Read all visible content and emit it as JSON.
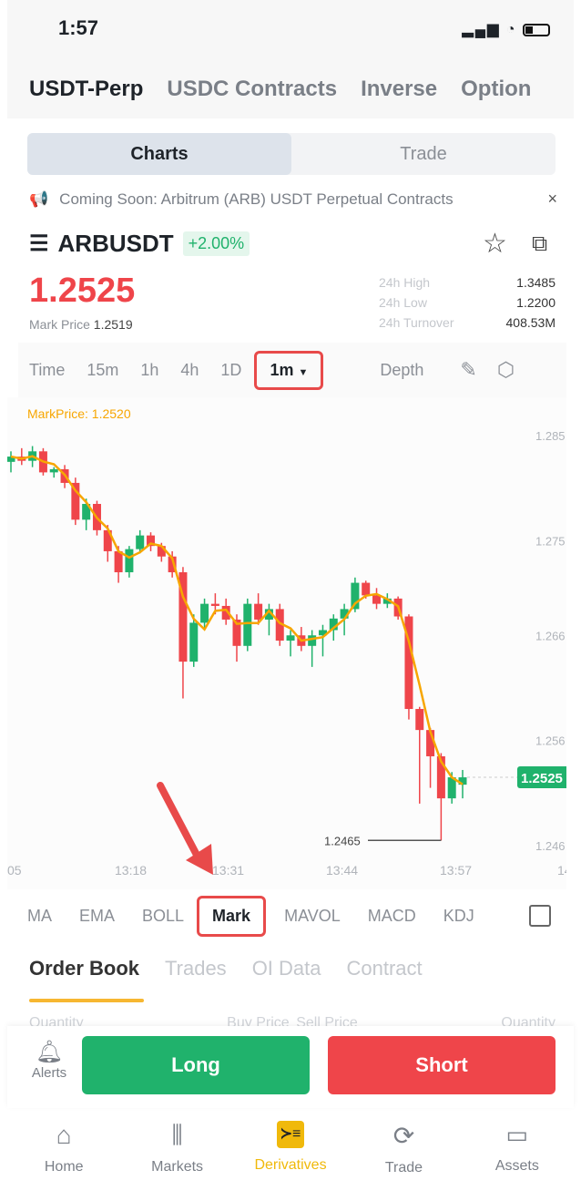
{
  "status_bar": {
    "time": "1:57",
    "icons": "signal wifi battery"
  },
  "top_tabs": [
    {
      "label": "USDT-Perp",
      "active": true
    },
    {
      "label": "USDC Contracts"
    },
    {
      "label": "Inverse"
    },
    {
      "label": "Option"
    }
  ],
  "segment": {
    "charts": "Charts",
    "trade": "Trade"
  },
  "notice": {
    "text": "Coming Soon: Arbitrum (ARB) USDT Perpetual Contracts",
    "close": "×"
  },
  "symbol": {
    "name": "ARBUSDT",
    "change": "+2.00%"
  },
  "price": {
    "last": "1.2525",
    "mark_label": "Mark Price",
    "mark_value": "1.2519"
  },
  "stats": [
    {
      "label": "24h High",
      "value": "1.3485"
    },
    {
      "label": "24h Low",
      "value": "1.2200"
    },
    {
      "label": "24h Turnover",
      "value": "408.53M"
    }
  ],
  "timeframes": {
    "items": [
      "Time",
      "15m",
      "1h",
      "4h",
      "1D"
    ],
    "selected": "1m",
    "depth": "Depth"
  },
  "chart_data": {
    "type": "candlestick",
    "mark_price_label": "MarkPrice: 1.2520",
    "y_ticks": [
      "1.285",
      "1.275",
      "1.266",
      "1.256",
      "1.246"
    ],
    "y_tick_values": [
      1.285,
      1.275,
      1.266,
      1.256,
      1.246
    ],
    "x_ticks": [
      "05",
      "13:18",
      "13:31",
      "13:44",
      "13:57",
      "14"
    ],
    "current_price": "1.2525",
    "low_marker": "1.2465",
    "colors": {
      "up": "#20b26c",
      "down": "#ef454a",
      "ma": "#f7a600"
    },
    "candles": [
      [
        1.2825,
        1.2835,
        1.2815,
        1.283
      ],
      [
        1.283,
        1.2838,
        1.2822,
        1.2826
      ],
      [
        1.2826,
        1.284,
        1.282,
        1.2835
      ],
      [
        1.2835,
        1.2838,
        1.2812,
        1.2815
      ],
      [
        1.2815,
        1.282,
        1.281,
        1.2818
      ],
      [
        1.2818,
        1.2822,
        1.28,
        1.2805
      ],
      [
        1.2805,
        1.281,
        1.2765,
        1.277
      ],
      [
        1.277,
        1.279,
        1.276,
        1.2785
      ],
      [
        1.2785,
        1.2788,
        1.2755,
        1.276
      ],
      [
        1.276,
        1.2765,
        1.273,
        1.274
      ],
      [
        1.274,
        1.2745,
        1.271,
        1.272
      ],
      [
        1.272,
        1.2745,
        1.2715,
        1.2742
      ],
      [
        1.2742,
        1.276,
        1.2738,
        1.2755
      ],
      [
        1.2755,
        1.2758,
        1.274,
        1.2745
      ],
      [
        1.2745,
        1.2748,
        1.273,
        1.2735
      ],
      [
        1.2735,
        1.274,
        1.2715,
        1.272
      ],
      [
        1.272,
        1.2725,
        1.26,
        1.2635
      ],
      [
        1.2635,
        1.268,
        1.263,
        1.2672
      ],
      [
        1.2672,
        1.2695,
        1.2665,
        1.269
      ],
      [
        1.269,
        1.27,
        1.268,
        1.2688
      ],
      [
        1.2688,
        1.2695,
        1.267,
        1.2675
      ],
      [
        1.2675,
        1.268,
        1.2635,
        1.265
      ],
      [
        1.265,
        1.2695,
        1.2645,
        1.269
      ],
      [
        1.269,
        1.27,
        1.267,
        1.2675
      ],
      [
        1.2675,
        1.269,
        1.266,
        1.2685
      ],
      [
        1.2685,
        1.269,
        1.265,
        1.2655
      ],
      [
        1.2655,
        1.2665,
        1.264,
        1.266
      ],
      [
        1.266,
        1.2668,
        1.2645,
        1.265
      ],
      [
        1.265,
        1.2665,
        1.263,
        1.266
      ],
      [
        1.266,
        1.267,
        1.264,
        1.2665
      ],
      [
        1.2665,
        1.268,
        1.2655,
        1.2676
      ],
      [
        1.2676,
        1.269,
        1.266,
        1.2685
      ],
      [
        1.2685,
        1.2715,
        1.2682,
        1.271
      ],
      [
        1.271,
        1.2712,
        1.2695,
        1.2698
      ],
      [
        1.2698,
        1.2705,
        1.2685,
        1.269
      ],
      [
        1.269,
        1.27,
        1.2686,
        1.2695
      ],
      [
        1.2695,
        1.2697,
        1.2675,
        1.2678
      ],
      [
        1.2678,
        1.268,
        1.258,
        1.259
      ],
      [
        1.259,
        1.2592,
        1.25,
        1.257
      ],
      [
        1.257,
        1.2572,
        1.2515,
        1.2545
      ],
      [
        1.2545,
        1.2548,
        1.2465,
        1.2505
      ],
      [
        1.2505,
        1.253,
        1.25,
        1.2525
      ],
      [
        1.2518,
        1.2532,
        1.2505,
        1.2525
      ]
    ]
  },
  "indicators": {
    "items_before": [
      "MA",
      "EMA",
      "BOLL"
    ],
    "selected": "Mark",
    "items_after": [
      "MAVOL",
      "MACD",
      "KDJ"
    ]
  },
  "orderbook": {
    "tabs": [
      "Order Book",
      "Trades",
      "OI Data",
      "Contract"
    ],
    "headers": [
      "Quantity",
      "Buy Price",
      "Sell Price",
      "Quantity"
    ]
  },
  "actions": {
    "alerts": "Alerts",
    "long": "Long",
    "short": "Short",
    "long_color": "#20b26c",
    "short_color": "#ef454a"
  },
  "nav": [
    {
      "label": "Home"
    },
    {
      "label": "Markets"
    },
    {
      "label": "Derivatives",
      "active": true
    },
    {
      "label": "Trade"
    },
    {
      "label": "Assets"
    }
  ]
}
